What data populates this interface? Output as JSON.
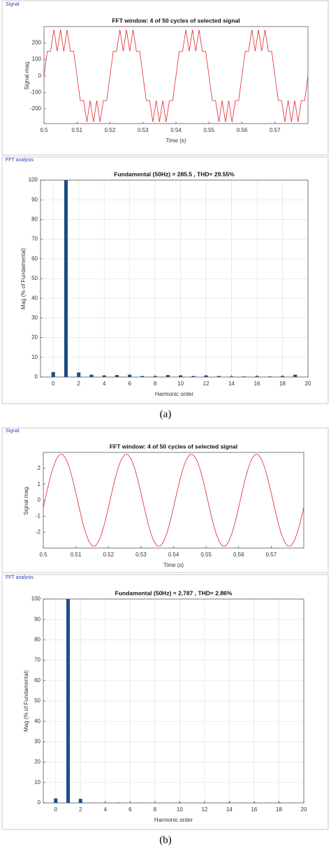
{
  "captions": [
    "(a)",
    "(b)"
  ],
  "chart_data": [
    {
      "type": "line",
      "panel_label": "Signal",
      "title": "FFT window: 4 of 50 cycles of selected signal",
      "x_label": "Time (s)",
      "y_label": "Signal mag.",
      "color": "#e0262b",
      "grid": false,
      "xlim": [
        0.5,
        0.58
      ],
      "xticks": [
        0.5,
        0.51,
        0.52,
        0.53,
        0.54,
        0.55,
        0.56,
        0.57
      ],
      "ylim": [
        -290,
        300
      ],
      "yticks": [
        -200,
        -100,
        0,
        100,
        200
      ],
      "x": [
        0.5,
        0.501,
        0.502,
        0.503,
        0.504,
        0.505,
        0.506,
        0.507,
        0.508,
        0.509,
        0.51,
        0.511,
        0.512,
        0.513,
        0.514,
        0.515,
        0.516,
        0.517,
        0.518,
        0.519,
        0.52,
        0.521,
        0.522,
        0.523,
        0.524,
        0.525,
        0.526,
        0.527,
        0.528,
        0.529,
        0.53,
        0.531,
        0.532,
        0.533,
        0.534,
        0.535,
        0.536,
        0.537,
        0.538,
        0.539,
        0.54,
        0.541,
        0.542,
        0.543,
        0.544,
        0.545,
        0.546,
        0.547,
        0.548,
        0.549,
        0.55,
        0.551,
        0.552,
        0.553,
        0.554,
        0.555,
        0.556,
        0.557,
        0.558,
        0.559,
        0.56,
        0.561,
        0.562,
        0.563,
        0.564,
        0.565,
        0.566,
        0.567,
        0.568,
        0.569,
        0.57,
        0.571,
        0.572,
        0.573,
        0.574,
        0.575,
        0.576,
        0.577,
        0.578,
        0.579,
        0.58
      ],
      "values": [
        0,
        150,
        150,
        280,
        150,
        280,
        150,
        280,
        150,
        150,
        0,
        -150,
        -150,
        -280,
        -150,
        -280,
        -150,
        -280,
        -150,
        -150,
        0,
        150,
        150,
        280,
        150,
        280,
        150,
        280,
        150,
        150,
        0,
        -150,
        -150,
        -280,
        -150,
        -280,
        -150,
        -280,
        -150,
        -150,
        0,
        150,
        150,
        280,
        150,
        280,
        150,
        280,
        150,
        150,
        0,
        -150,
        -150,
        -280,
        -150,
        -280,
        -150,
        -280,
        -150,
        -150,
        0,
        150,
        150,
        280,
        150,
        280,
        150,
        280,
        150,
        150,
        0,
        -150,
        -150,
        -280,
        -150,
        -280,
        -150,
        -280,
        -150,
        -150,
        0
      ]
    },
    {
      "type": "bar",
      "panel_label": "FFT analysis",
      "title": "Fundamental (50Hz) = 285.5 , THD= 29.55%",
      "x_label": "Harmonic order",
      "y_label": "Mag (% of Fundamental)",
      "color": "#1b4f86",
      "grid": true,
      "xlim": [
        -1,
        20
      ],
      "xticks": [
        0,
        2,
        4,
        6,
        8,
        10,
        12,
        14,
        16,
        18,
        20
      ],
      "ylim": [
        0,
        100
      ],
      "yticks": [
        0,
        10,
        20,
        30,
        40,
        50,
        60,
        70,
        80,
        90,
        100
      ],
      "x": [
        0,
        1,
        2,
        3,
        4,
        5,
        6,
        7,
        8,
        9,
        10,
        11,
        12,
        13,
        14,
        15,
        16,
        17,
        18,
        19
      ],
      "values": [
        2.5,
        100,
        2.3,
        1.2,
        0.8,
        1.0,
        1.2,
        0.5,
        0.5,
        1.0,
        0.8,
        0.5,
        0.8,
        0.5,
        0.3,
        0.3,
        0.5,
        0.3,
        0.5,
        1.2
      ]
    },
    {
      "type": "line",
      "panel_label": "Signal",
      "title": "FFT window: 4 of 50 cycles of selected signal",
      "x_label": "Time (s)",
      "y_label": "Signal mag.",
      "color": "#e0262b",
      "grid": false,
      "xlim": [
        0.5,
        0.58
      ],
      "xticks": [
        0.5,
        0.51,
        0.52,
        0.53,
        0.54,
        0.55,
        0.56,
        0.57
      ],
      "ylim": [
        -3,
        3
      ],
      "yticks": [
        -2,
        -1,
        0,
        1,
        2
      ],
      "x": [
        0.5,
        0.501,
        0.502,
        0.503,
        0.504,
        0.505,
        0.506,
        0.507,
        0.508,
        0.509,
        0.51,
        0.511,
        0.512,
        0.513,
        0.514,
        0.515,
        0.516,
        0.517,
        0.518,
        0.519,
        0.52,
        0.521,
        0.522,
        0.523,
        0.524,
        0.525,
        0.526,
        0.527,
        0.528,
        0.529,
        0.53,
        0.531,
        0.532,
        0.533,
        0.534,
        0.535,
        0.536,
        0.537,
        0.538,
        0.539,
        0.54,
        0.541,
        0.542,
        0.543,
        0.544,
        0.545,
        0.546,
        0.547,
        0.548,
        0.549,
        0.55,
        0.551,
        0.552,
        0.553,
        0.554,
        0.555,
        0.556,
        0.557,
        0.558,
        0.559,
        0.56,
        0.561,
        0.562,
        0.563,
        0.564,
        0.565,
        0.566,
        0.567,
        0.568,
        0.569,
        0.57,
        0.571,
        0.572,
        0.573,
        0.574,
        0.575,
        0.576,
        0.577,
        0.578,
        0.579,
        0.58
      ],
      "values": [
        -0.45,
        0.45,
        1.32,
        2.05,
        2.58,
        2.87,
        2.87,
        2.58,
        2.05,
        1.32,
        0.45,
        -0.45,
        -1.32,
        -2.05,
        -2.58,
        -2.87,
        -2.87,
        -2.58,
        -2.05,
        -1.32,
        -0.45,
        0.45,
        1.32,
        2.05,
        2.58,
        2.87,
        2.87,
        2.58,
        2.05,
        1.32,
        0.45,
        -0.45,
        -1.32,
        -2.05,
        -2.58,
        -2.87,
        -2.87,
        -2.58,
        -2.05,
        -1.32,
        -0.45,
        0.45,
        1.32,
        2.05,
        2.58,
        2.87,
        2.87,
        2.58,
        2.05,
        1.32,
        0.45,
        -0.45,
        -1.32,
        -2.05,
        -2.58,
        -2.87,
        -2.87,
        -2.58,
        -2.05,
        -1.32,
        -0.45,
        0.45,
        1.32,
        2.05,
        2.58,
        2.87,
        2.87,
        2.58,
        2.05,
        1.32,
        0.45,
        -0.45,
        -1.32,
        -2.05,
        -2.58,
        -2.87,
        -2.87,
        -2.58,
        -2.05,
        -1.32,
        -0.45
      ]
    },
    {
      "type": "bar",
      "panel_label": "FFT analysis",
      "title": "Fundamental (50Hz) = 2.787 , THD= 2.86%",
      "x_label": "Harmonic order",
      "y_label": "Mag (% of Fundamental)",
      "color": "#1b4f86",
      "grid": true,
      "xlim": [
        -1,
        20
      ],
      "xticks": [
        0,
        2,
        4,
        6,
        8,
        10,
        12,
        14,
        16,
        18,
        20
      ],
      "ylim": [
        0,
        100
      ],
      "yticks": [
        0,
        10,
        20,
        30,
        40,
        50,
        60,
        70,
        80,
        90,
        100
      ],
      "x": [
        0,
        1,
        2,
        3,
        4,
        5,
        6,
        7,
        8,
        9,
        10,
        11,
        12,
        13,
        14,
        15,
        16,
        17,
        18,
        19
      ],
      "values": [
        2.2,
        100,
        2.0,
        0.1,
        0.2,
        0.2,
        0.1,
        0.1,
        0.1,
        0.1,
        0.2,
        0.1,
        0.1,
        0.1,
        0.2,
        0.1,
        0.2,
        0.1,
        0.2,
        0.1
      ]
    }
  ]
}
